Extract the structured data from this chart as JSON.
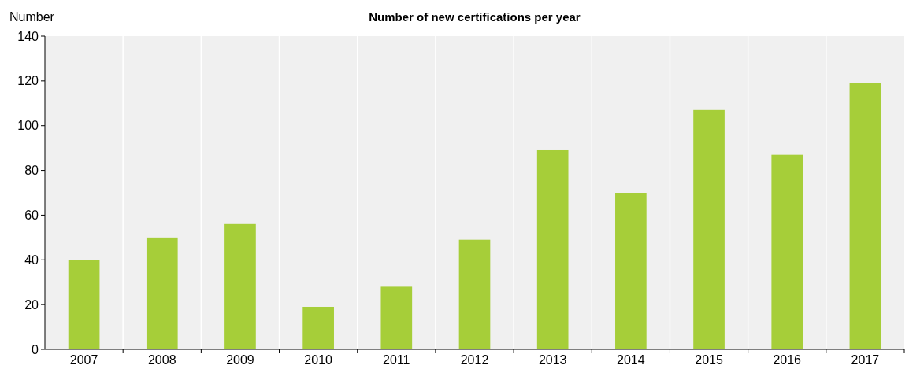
{
  "chart_data": {
    "type": "bar",
    "title": "Number of new certifications per year",
    "ylabel": "Number",
    "categories": [
      "2007",
      "2008",
      "2009",
      "2010",
      "2011",
      "2012",
      "2013",
      "2014",
      "2015",
      "2016",
      "2017"
    ],
    "values": [
      40,
      50,
      56,
      19,
      28,
      49,
      89,
      70,
      107,
      87,
      119
    ],
    "color": "#a6ce39",
    "ylim": [
      0,
      140
    ],
    "yticks": [
      0,
      20,
      40,
      60,
      80,
      100,
      120,
      140
    ],
    "grid": "x"
  }
}
